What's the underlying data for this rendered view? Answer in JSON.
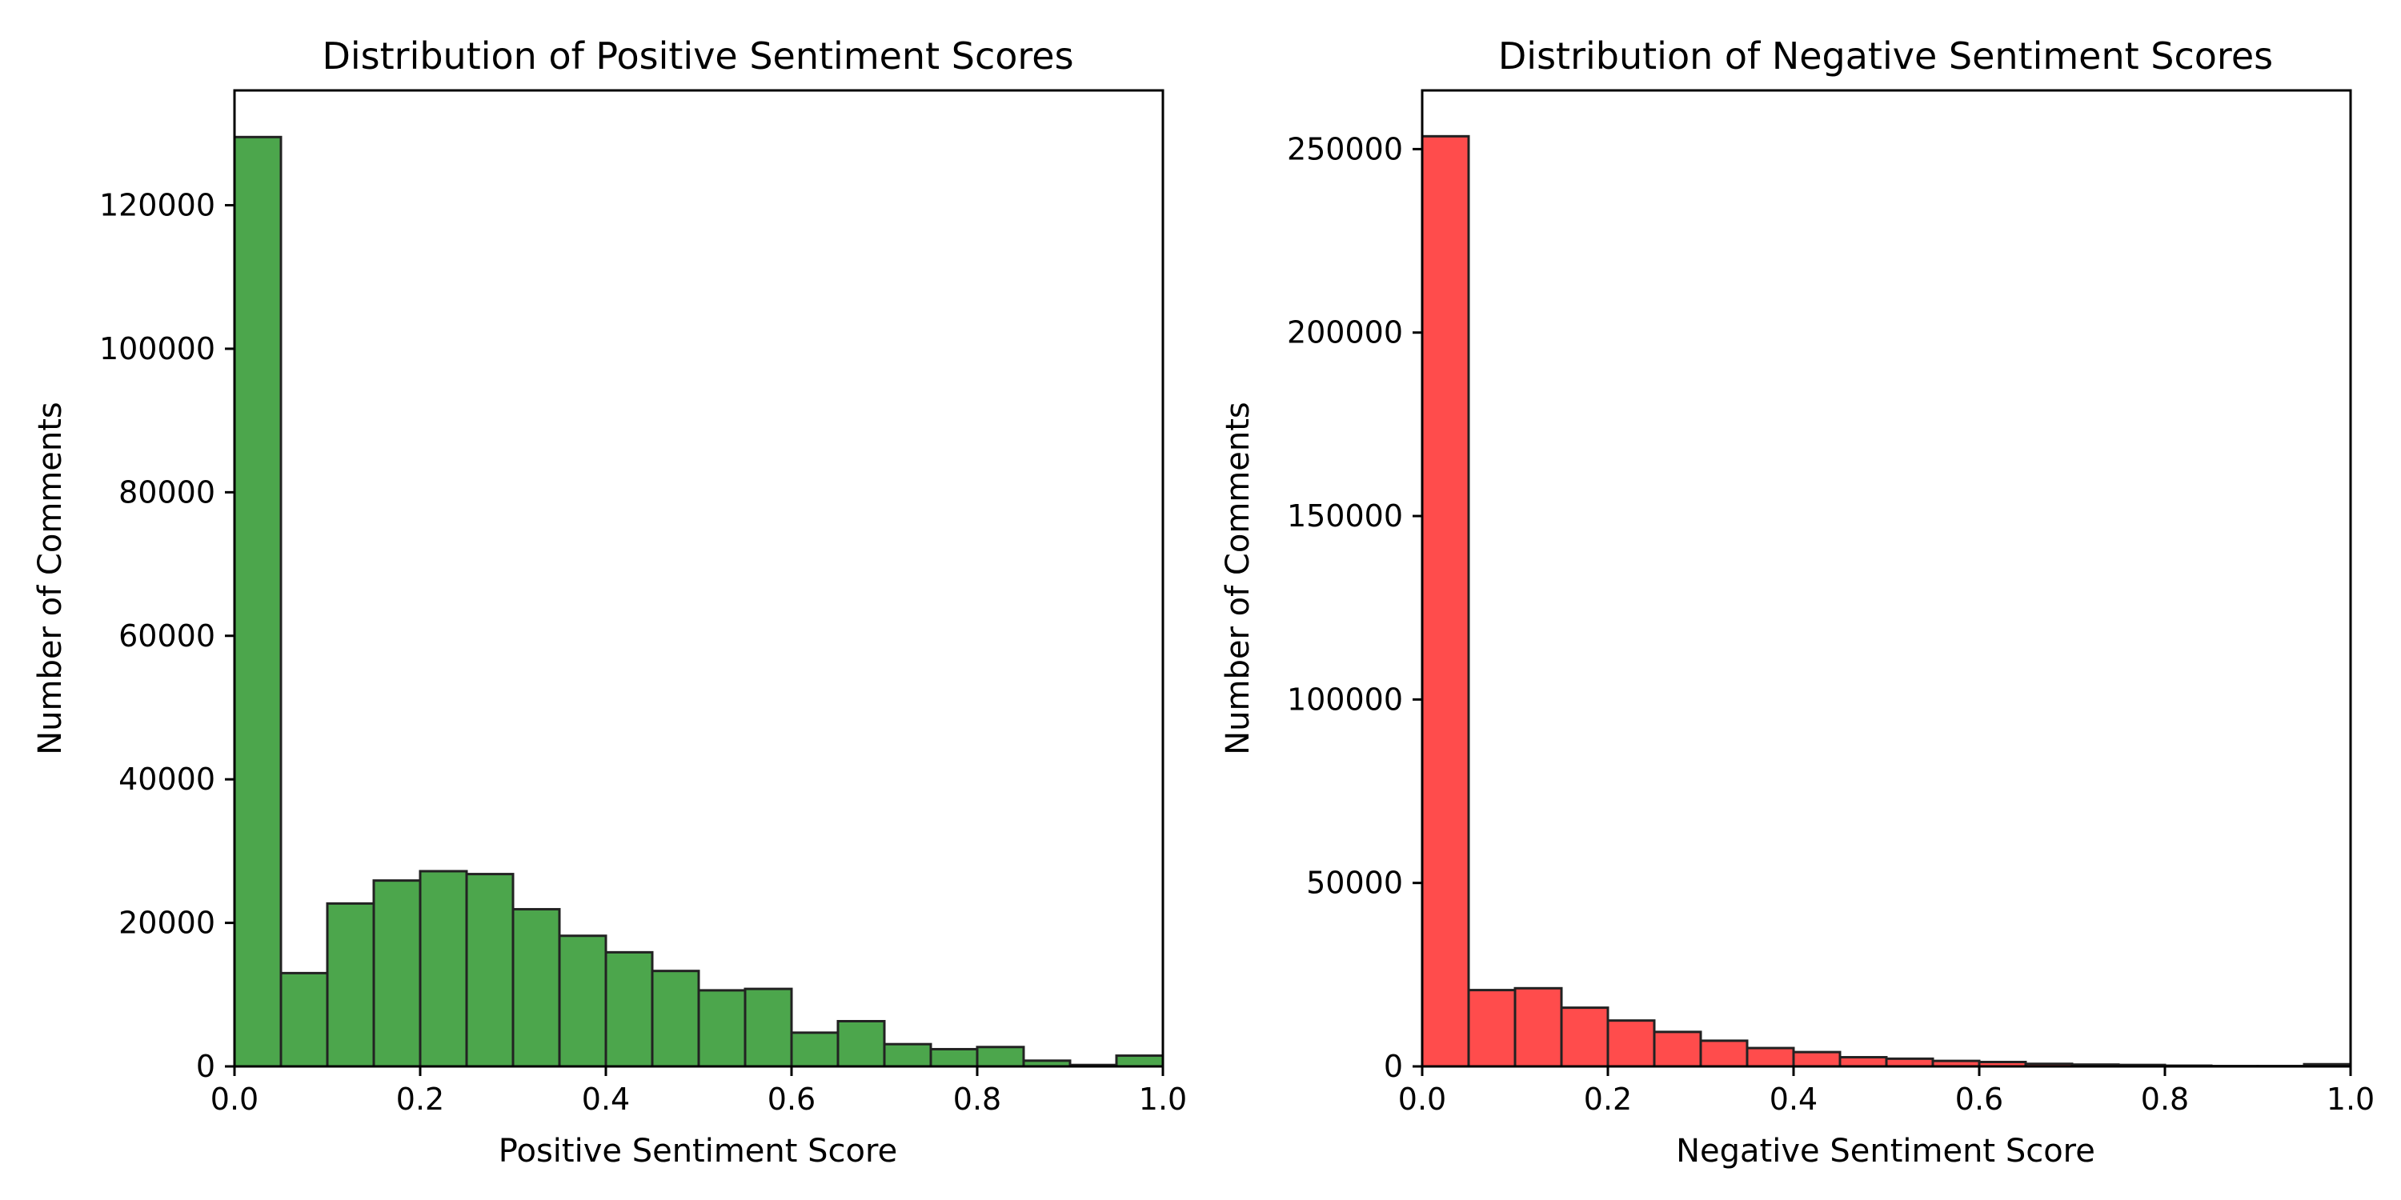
{
  "chart_data": [
    {
      "type": "bar",
      "title": "Distribution of Positive Sentiment Scores",
      "xlabel": "Positive Sentiment Score",
      "ylabel": "Number of Comments",
      "color": "#008000",
      "xlim": [
        0.0,
        1.0
      ],
      "ylim": [
        0,
        136000
      ],
      "xticks": [
        0.0,
        0.2,
        0.4,
        0.6,
        0.8,
        1.0
      ],
      "xtick_labels": [
        "0.0",
        "0.2",
        "0.4",
        "0.6",
        "0.8",
        "1.0"
      ],
      "yticks": [
        0,
        20000,
        40000,
        60000,
        80000,
        100000,
        120000
      ],
      "ytick_labels": [
        "0",
        "20000",
        "40000",
        "60000",
        "80000",
        "100000",
        "120000"
      ],
      "bin_edges": [
        0.0,
        0.05,
        0.1,
        0.15,
        0.2,
        0.25,
        0.3,
        0.35,
        0.4,
        0.45,
        0.5,
        0.55,
        0.6,
        0.65,
        0.7,
        0.75,
        0.8,
        0.85,
        0.9,
        0.95,
        1.0
      ],
      "values": [
        129500,
        13000,
        22700,
        25900,
        27200,
        26800,
        21900,
        18200,
        15900,
        13300,
        10600,
        10800,
        4700,
        6300,
        3100,
        2400,
        2700,
        800,
        200,
        1500
      ],
      "grid": false
    },
    {
      "type": "bar",
      "title": "Distribution of Negative Sentiment Scores",
      "xlabel": "Negative Sentiment Score",
      "ylabel": "Number of Comments",
      "color": "#ff0000",
      "xlim": [
        0.0,
        1.0
      ],
      "ylim": [
        0,
        266000
      ],
      "xticks": [
        0.0,
        0.2,
        0.4,
        0.6,
        0.8,
        1.0
      ],
      "xtick_labels": [
        "0.0",
        "0.2",
        "0.4",
        "0.6",
        "0.8",
        "1.0"
      ],
      "yticks": [
        0,
        50000,
        100000,
        150000,
        200000,
        250000
      ],
      "ytick_labels": [
        "0",
        "50000",
        "100000",
        "150000",
        "200000",
        "250000"
      ],
      "bin_edges": [
        0.0,
        0.05,
        0.1,
        0.15,
        0.2,
        0.25,
        0.3,
        0.35,
        0.4,
        0.45,
        0.5,
        0.55,
        0.6,
        0.65,
        0.7,
        0.75,
        0.8,
        0.85,
        0.9,
        0.95,
        1.0
      ],
      "values": [
        253500,
        20800,
        21300,
        16000,
        12500,
        9400,
        7000,
        5000,
        3900,
        2500,
        2100,
        1500,
        1200,
        700,
        500,
        400,
        200,
        100,
        100,
        600
      ],
      "grid": false
    }
  ]
}
